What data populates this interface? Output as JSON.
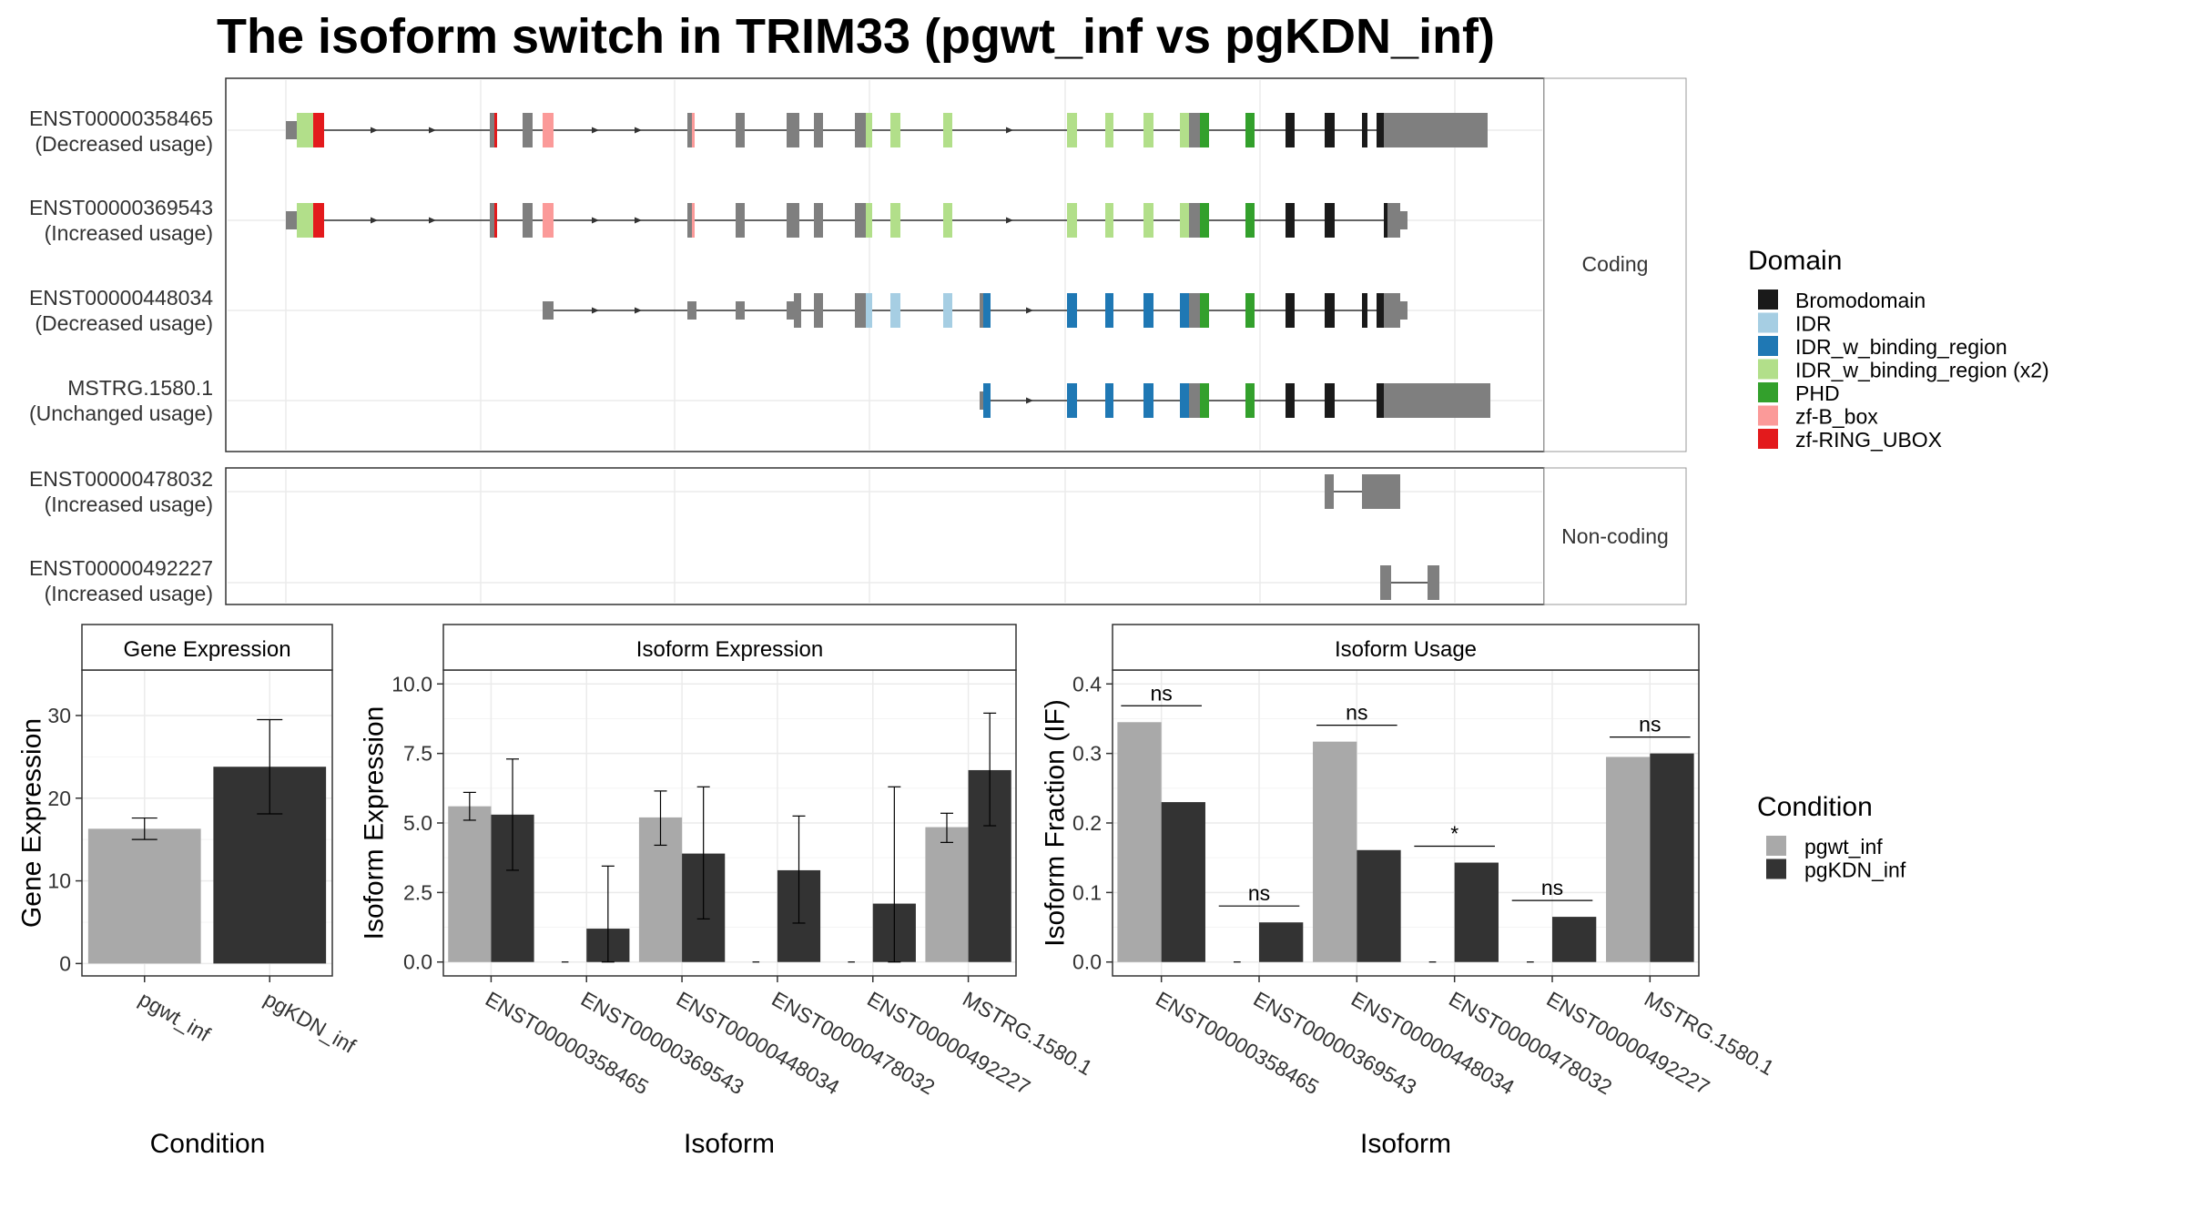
{
  "title": "The isoform switch in TRIM33 (pgwt_inf vs pgKDN_inf)",
  "colors": {
    "exon": "#7f7f7f",
    "pgwt_inf": "#a9a9a9",
    "pgKDN_inf": "#333333",
    "Bromodomain": "#1a1a1a",
    "IDR": "#a6cee3",
    "IDR_w_binding_region": "#1f78b4",
    "IDR_w_binding_region (x2)": "#b2df8a",
    "PHD": "#33a02c",
    "zf-B_box": "#fb9a99",
    "zf-RING_UBOX": "#e31a1c"
  },
  "domain_legend": {
    "title": "Domain",
    "items": [
      "Bromodomain",
      "IDR",
      "IDR_w_binding_region",
      "IDR_w_binding_region (x2)",
      "PHD",
      "zf-B_box",
      "zf-RING_UBOX"
    ]
  },
  "condition_legend": {
    "title": "Condition",
    "items": [
      "pgwt_inf",
      "pgKDN_inf"
    ]
  },
  "transcripts": {
    "coding_label": "Coding",
    "noncoding_label": "Non-coding",
    "coding": [
      {
        "id": "ENST00000358465",
        "usage": "(Decreased usage)"
      },
      {
        "id": "ENST00000369543",
        "usage": "(Increased usage)"
      },
      {
        "id": "ENST00000448034",
        "usage": "(Decreased usage)"
      },
      {
        "id": "MSTRG.1580.1",
        "usage": "(Unchanged usage)"
      }
    ],
    "noncoding": [
      {
        "id": "ENST00000478032",
        "usage": "(Increased usage)"
      },
      {
        "id": "ENST00000492227",
        "usage": "(Increased usage)"
      }
    ]
  },
  "chart_data": [
    {
      "type": "bar",
      "title": "Gene Expression",
      "xlabel": "Condition",
      "ylabel": "Gene Expression",
      "categories": [
        "pgwt_inf",
        "pgKDN_inf"
      ],
      "values": [
        16.3,
        23.8
      ],
      "error_low": [
        15.0,
        18.1
      ],
      "error_high": [
        17.6,
        29.5
      ],
      "ylim": [
        -1.5,
        35.5
      ],
      "yticks": [
        0,
        10,
        20,
        30
      ]
    },
    {
      "type": "bar",
      "title": "Isoform Expression",
      "xlabel": "Isoform",
      "ylabel": "Isoform Expression",
      "categories": [
        "ENST00000358465",
        "ENST00000369543",
        "ENST00000448034",
        "ENST00000478032",
        "ENST00000492227",
        "MSTRG.1580.1"
      ],
      "series": [
        {
          "name": "pgwt_inf",
          "values": [
            5.6,
            0.0,
            5.2,
            0.0,
            0.0,
            4.85
          ],
          "error_low": [
            5.1,
            0.0,
            4.2,
            0.0,
            0.0,
            4.3
          ],
          "error_high": [
            6.1,
            0.0,
            6.15,
            0.0,
            0.0,
            5.35
          ]
        },
        {
          "name": "pgKDN_inf",
          "values": [
            5.3,
            1.2,
            3.9,
            3.3,
            2.1,
            6.9
          ],
          "error_low": [
            3.3,
            0.0,
            1.55,
            1.4,
            0.0,
            4.9
          ],
          "error_high": [
            7.3,
            3.45,
            6.3,
            5.25,
            6.3,
            8.95
          ]
        }
      ],
      "ylim": [
        -0.5,
        10.5
      ],
      "yticks": [
        "0.0",
        "2.5",
        "5.0",
        "7.5",
        "10.0"
      ]
    },
    {
      "type": "bar",
      "title": "Isoform Usage",
      "xlabel": "Isoform",
      "ylabel": "Isoform Fraction (IF)",
      "categories": [
        "ENST00000358465",
        "ENST00000369543",
        "ENST00000448034",
        "ENST00000478032",
        "ENST00000492227",
        "MSTRG.1580.1"
      ],
      "series": [
        {
          "name": "pgwt_inf",
          "values": [
            0.345,
            0.0,
            0.317,
            0.0,
            0.0,
            0.295
          ]
        },
        {
          "name": "pgKDN_inf",
          "values": [
            0.23,
            0.057,
            0.161,
            0.143,
            0.065,
            0.3
          ]
        }
      ],
      "significance": [
        "ns",
        "ns",
        "ns",
        "*",
        "ns",
        "ns"
      ],
      "ylim": [
        -0.02,
        0.42
      ],
      "yticks": [
        "0.0",
        "0.1",
        "0.2",
        "0.3",
        "0.4"
      ]
    }
  ]
}
